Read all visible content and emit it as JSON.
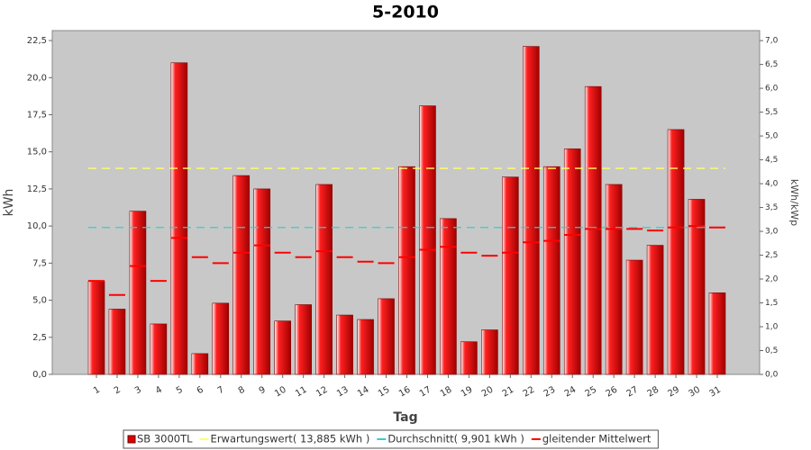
{
  "chart_data": {
    "type": "bar",
    "title": "5-2010",
    "x_label": "Tag",
    "y_label": "kWh",
    "y2_label": "kWh/kWp",
    "categories": [
      "1",
      "2",
      "3",
      "4",
      "5",
      "6",
      "7",
      "8",
      "9",
      "10",
      "11",
      "12",
      "13",
      "14",
      "15",
      "16",
      "17",
      "18",
      "19",
      "20",
      "21",
      "22",
      "23",
      "24",
      "25",
      "26",
      "27",
      "28",
      "29",
      "30",
      "31"
    ],
    "series": [
      {
        "name": "SB 3000TL",
        "kind": "bar",
        "color": "#e00000",
        "values": [
          6.3,
          4.4,
          11.0,
          3.4,
          21.0,
          1.4,
          4.8,
          13.4,
          12.5,
          3.6,
          4.7,
          12.8,
          4.0,
          3.7,
          5.1,
          14.0,
          18.1,
          10.5,
          2.2,
          3.0,
          13.3,
          22.1,
          14.0,
          15.2,
          19.4,
          12.8,
          7.7,
          8.7,
          16.5,
          11.8,
          5.5
        ]
      },
      {
        "name": "Erwartungswert( 13,885 kWh )",
        "kind": "hline",
        "color": "#ffff66",
        "value": 13.885
      },
      {
        "name": "Durchschnitt( 9,901 kWh )",
        "kind": "hline",
        "color": "#33cccc",
        "value": 9.901
      },
      {
        "name": "gleitender Mittelwert",
        "kind": "dash",
        "color": "#ff0000",
        "values": [
          6.3,
          5.35,
          7.3,
          6.3,
          9.2,
          7.9,
          7.5,
          8.2,
          8.7,
          8.2,
          7.9,
          8.3,
          7.9,
          7.6,
          7.5,
          7.9,
          8.4,
          8.6,
          8.2,
          8.0,
          8.2,
          8.9,
          9.0,
          9.4,
          9.8,
          9.8,
          9.8,
          9.7,
          9.9,
          10.0,
          9.9
        ]
      }
    ],
    "ylim": [
      0,
      23.17
    ],
    "yticks": [
      {
        "value": 0,
        "label": "0,0"
      },
      {
        "value": 2.5,
        "label": "2,5"
      },
      {
        "value": 5,
        "label": "5,0"
      },
      {
        "value": 7.5,
        "label": "7,5"
      },
      {
        "value": 10,
        "label": "10,0"
      },
      {
        "value": 12.5,
        "label": "12,5"
      },
      {
        "value": 15,
        "label": "15,0"
      },
      {
        "value": 17.5,
        "label": "17,5"
      },
      {
        "value": 20,
        "label": "20,0"
      },
      {
        "value": 22.5,
        "label": "22,5"
      }
    ],
    "y2lim": [
      0,
      7.21
    ],
    "y2ticks": [
      {
        "value": 0,
        "label": "0,0"
      },
      {
        "value": 0.5,
        "label": "0,5"
      },
      {
        "value": 1,
        "label": "1,0"
      },
      {
        "value": 1.5,
        "label": "1,5"
      },
      {
        "value": 2,
        "label": "2,0"
      },
      {
        "value": 2.5,
        "label": "2,5"
      },
      {
        "value": 3,
        "label": "3,0"
      },
      {
        "value": 3.5,
        "label": "3,5"
      },
      {
        "value": 4,
        "label": "4,0"
      },
      {
        "value": 4.5,
        "label": "4,5"
      },
      {
        "value": 5,
        "label": "5,0"
      },
      {
        "value": 5.5,
        "label": "5,5"
      },
      {
        "value": 6,
        "label": "6,0"
      },
      {
        "value": 6.5,
        "label": "6,5"
      },
      {
        "value": 7,
        "label": "7,0"
      }
    ],
    "plot_background": "#c8c8c8"
  }
}
